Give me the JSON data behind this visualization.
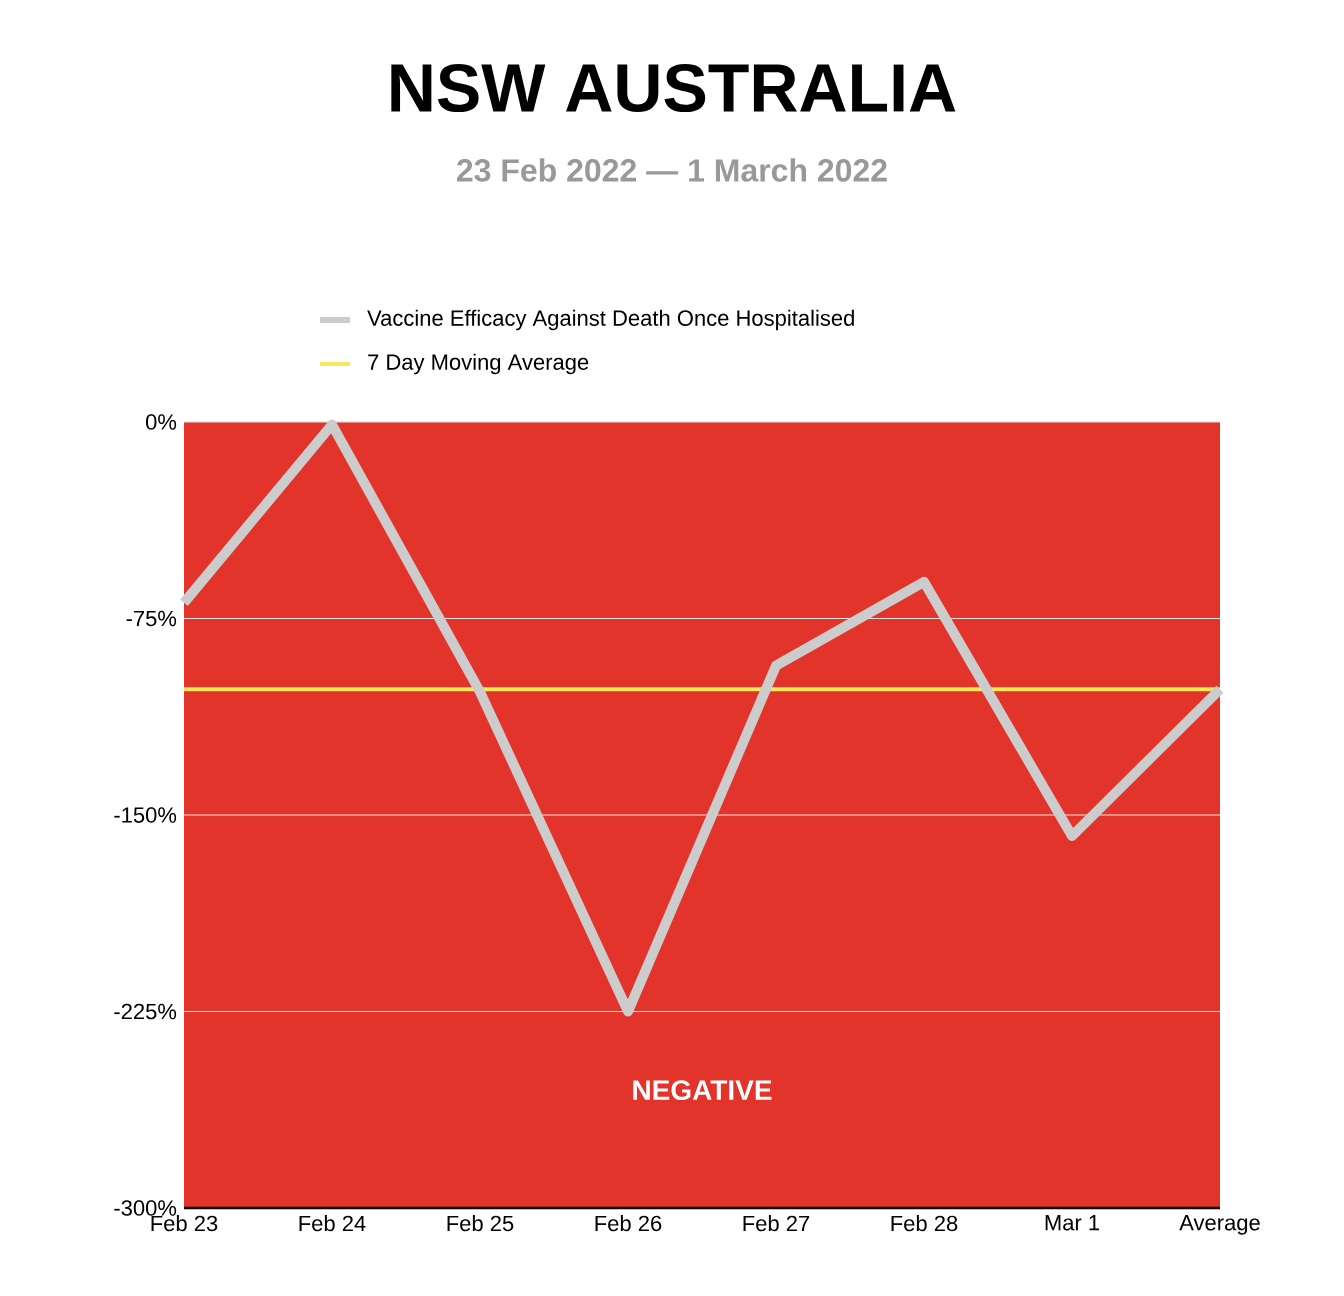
{
  "chart_data": {
    "type": "line",
    "title": "NSW AUSTRALIA",
    "subtitle": "23 Feb 2022 — 1 March 2022",
    "categories": [
      "Feb 23",
      "Feb 24",
      "Feb 25",
      "Feb 26",
      "Feb 27",
      "Feb 28",
      "Mar 1",
      "Average"
    ],
    "series": [
      {
        "name": "Vaccine Efficacy Against Death Once Hospitalised",
        "color": "#cccccc",
        "values": [
          -69,
          -1,
          -103,
          -225,
          -93,
          -61,
          -158,
          -102
        ]
      }
    ],
    "ylim": [
      -300,
      0
    ],
    "yticks": [
      {
        "value": -300,
        "label": "-300%"
      },
      {
        "value": -225,
        "label": "-225%"
      },
      {
        "value": -150,
        "label": "-150%"
      },
      {
        "value": -75,
        "label": "-75%"
      },
      {
        "value": 0,
        "label": "0%"
      }
    ],
    "grid": "y",
    "legend": "top",
    "marker": "none",
    "line_style": "solid",
    "ref_lines": [
      {
        "axis": "y",
        "value": -102,
        "label": "7 Day Moving Average",
        "color": "#f7e85a"
      }
    ],
    "bands": [
      {
        "axis": "y",
        "from": -300,
        "to": 0,
        "label": "NEGATIVE",
        "color": "#e2342a"
      }
    ]
  }
}
